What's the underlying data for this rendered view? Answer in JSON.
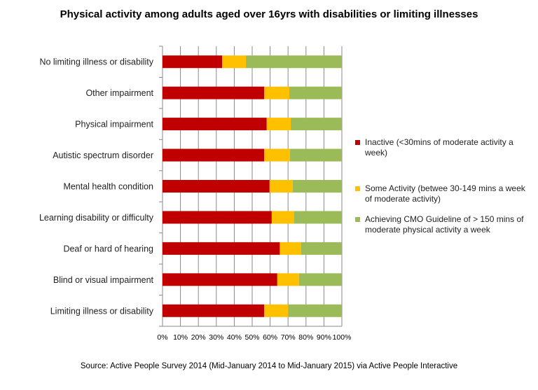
{
  "chart_data": {
    "type": "bar",
    "orientation": "horizontal",
    "stacked": "percent",
    "title": "Physical activity among adults aged over 16yrs with disabilities or limiting illnesses",
    "categories": [
      "No limiting illness or disability",
      "Other impairment",
      "Physical impairment",
      "Autistic spectrum disorder",
      "Mental health condition",
      "Learning disability or difficulty",
      "Deaf or hard of hearing",
      "Blind or visual impairment",
      "Limiting illness or disability"
    ],
    "series": [
      {
        "name": "Inactive (<30mins of moderate activity a week)",
        "color": "#C00000",
        "values": [
          33.2,
          56.7,
          58.1,
          56.7,
          59.7,
          60.9,
          65.4,
          64.0,
          56.7
        ]
      },
      {
        "name": "Some Activity (betwee 30-149 mins a week of moderate activity)",
        "color": "#FFC000",
        "values": [
          13.3,
          14.0,
          13.4,
          14.4,
          12.9,
          12.4,
          11.8,
          12.1,
          13.4
        ]
      },
      {
        "name": "Achieving CMO Guideline of > 150 mins of moderate physical activity a week",
        "color": "#9BBB59",
        "values": [
          53.5,
          29.3,
          28.5,
          28.9,
          27.4,
          26.7,
          22.8,
          23.9,
          29.9
        ]
      }
    ],
    "xlim": [
      0,
      100
    ],
    "xticks": [
      "0%",
      "10%",
      "20%",
      "30%",
      "40%",
      "50%",
      "60%",
      "70%",
      "80%",
      "90%",
      "100%"
    ],
    "grid": "vertical",
    "legend": "right"
  },
  "source": "Source:  Active People Survey 2014  (Mid-January 2014 to Mid-January 2015) via Active People Interactive"
}
